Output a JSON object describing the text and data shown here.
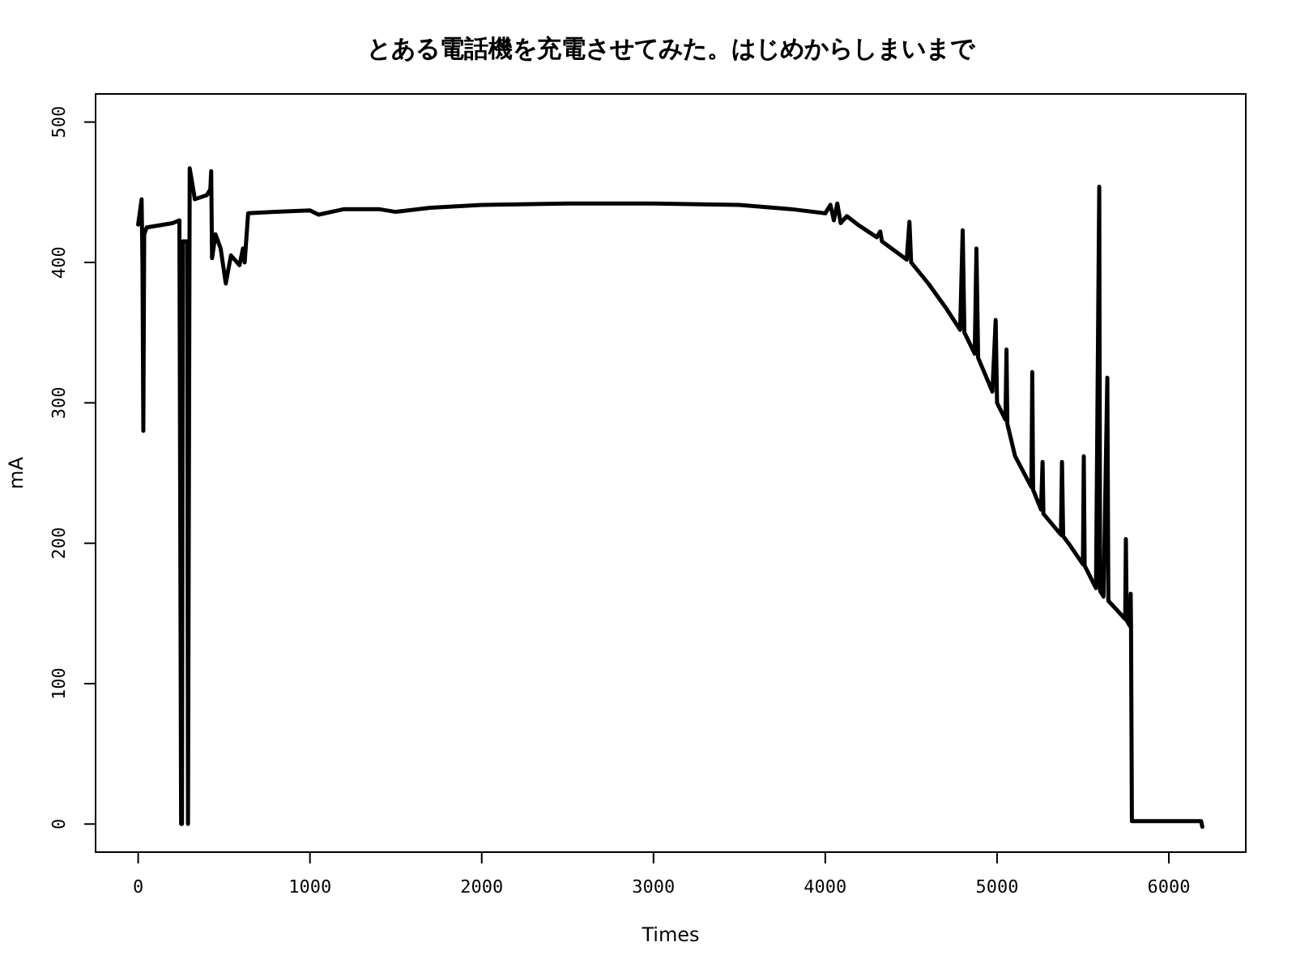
{
  "chart_data": {
    "type": "line",
    "title": "とある電話機を充電させてみた。はじめからしまいまで",
    "xlabel": "Times",
    "ylabel": "mA",
    "color": "#000000",
    "x": [
      0,
      20,
      25,
      30,
      35,
      50,
      200,
      240,
      250,
      255,
      260,
      285,
      290,
      300,
      330,
      400,
      420,
      425,
      430,
      450,
      480,
      510,
      540,
      590,
      610,
      620,
      640,
      800,
      1000,
      1050,
      1200,
      1400,
      1500,
      1700,
      2000,
      2500,
      3000,
      3500,
      3800,
      4000,
      4030,
      4050,
      4070,
      4090,
      4125,
      4200,
      4300,
      4320,
      4330,
      4474,
      4490,
      4500,
      4600,
      4700,
      4785,
      4800,
      4810,
      4870,
      4880,
      4890,
      4973,
      4992,
      5000,
      5049,
      5055,
      5060,
      5105,
      5200,
      5205,
      5210,
      5256,
      5265,
      5270,
      5372,
      5378,
      5385,
      5416,
      5500,
      5505,
      5510,
      5576,
      5595,
      5600,
      5620,
      5642,
      5648,
      5746,
      5750,
      5755,
      5774,
      5778,
      5780,
      5785,
      6100,
      6188,
      6195
    ],
    "values": [
      427,
      445,
      400,
      280,
      420,
      425,
      428,
      430,
      0,
      0,
      415,
      415,
      0,
      467,
      445,
      448,
      452,
      465,
      403,
      420,
      410,
      385,
      405,
      398,
      410,
      400,
      435,
      436,
      437,
      434,
      438,
      438,
      436,
      439,
      441,
      442,
      442,
      441,
      438,
      435,
      441,
      430,
      442,
      428,
      433,
      426,
      418,
      422,
      415,
      402,
      429,
      400,
      385,
      368,
      352,
      423,
      350,
      335,
      410,
      332,
      308,
      359,
      300,
      288,
      338,
      285,
      262,
      240,
      322,
      238,
      224,
      258,
      221,
      206,
      258,
      205,
      200,
      185,
      262,
      184,
      168,
      454,
      166,
      162,
      318,
      159,
      146,
      203,
      145,
      141,
      164,
      141,
      2,
      2,
      2,
      -2
    ],
    "xlim": [
      -248,
      6448
    ],
    "ylim": [
      -20,
      520
    ],
    "xticks": [
      0,
      1000,
      2000,
      3000,
      4000,
      5000,
      6000
    ],
    "yticks": [
      0,
      100,
      200,
      300,
      400,
      500
    ]
  }
}
